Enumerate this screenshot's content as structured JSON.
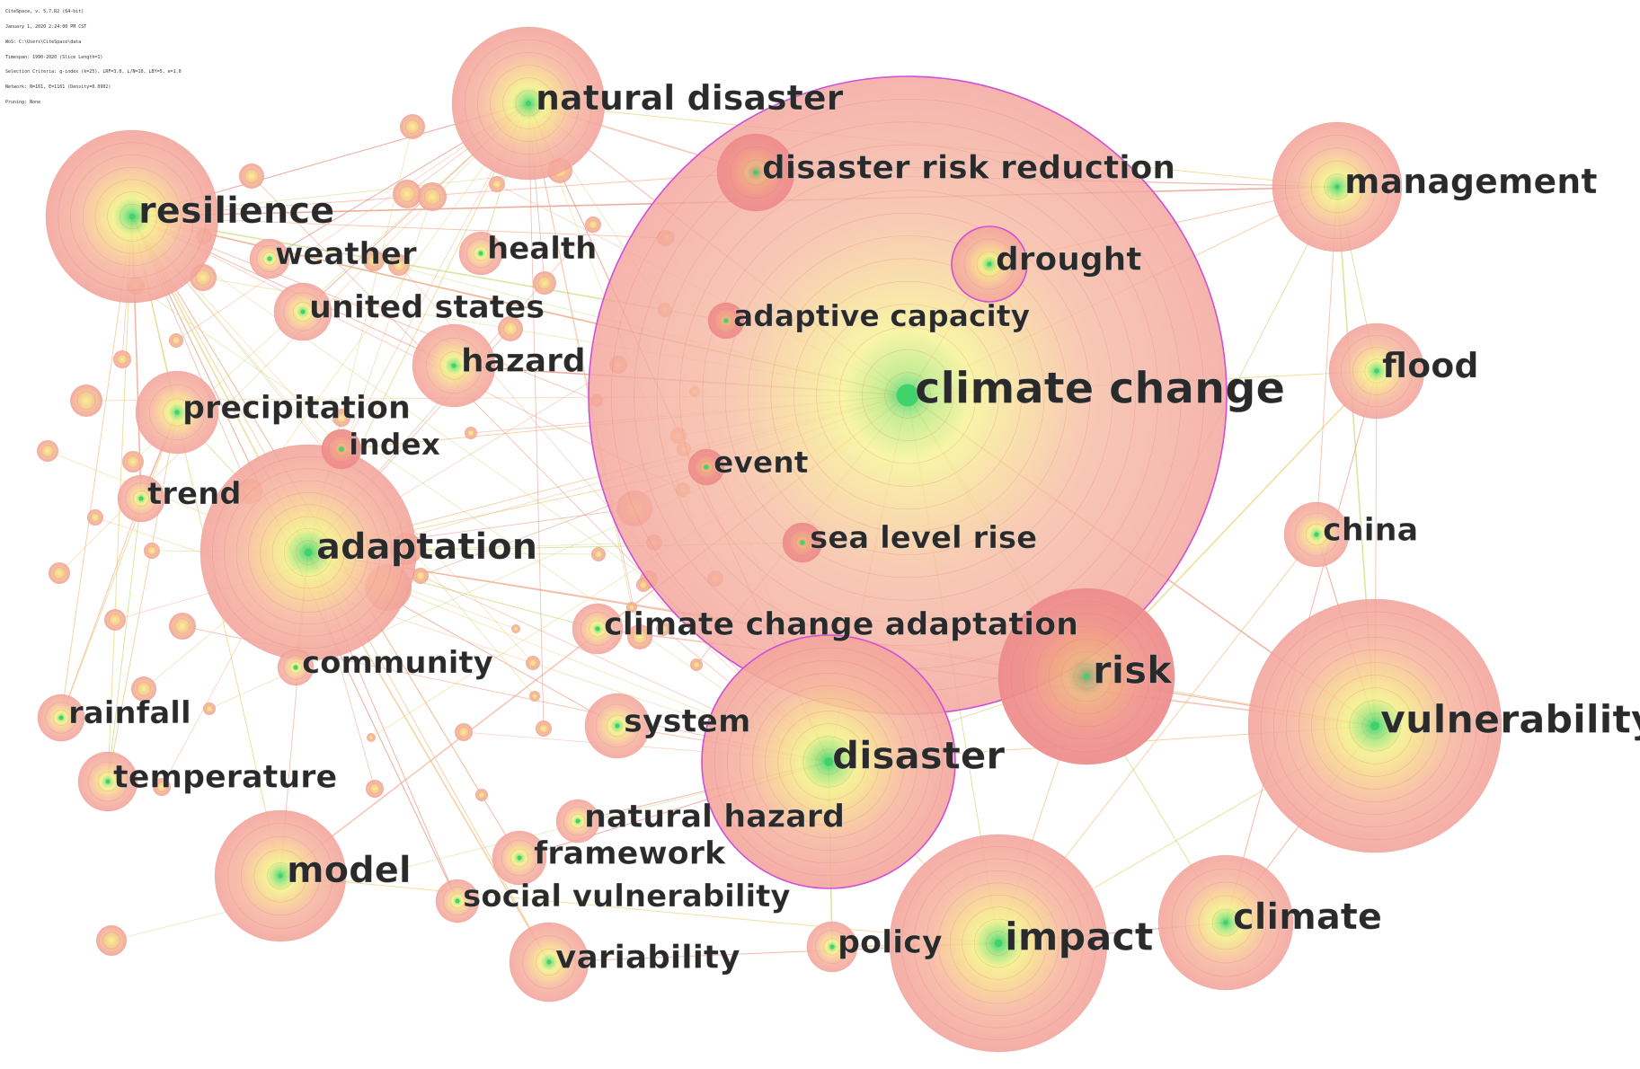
{
  "header_lines": [
    "CiteSpace, v. 5.7.R2 (64-bit)",
    "January 1, 2020 2:24:00 PM CST",
    "WoS: C:\\Users\\CiteSpace\\data",
    "Timespan: 1990-2020 (Slice Length=1)",
    "Selection Criteria: g-index (k=25), LRF=3.0, L/N=10, LBY=5, e=1.0",
    "Network: N=161, E=1161 (Density=0.0902)",
    "Pruning: None"
  ],
  "colors": {
    "halo": "#f4a6a0",
    "core": "#41d36b",
    "mid": "#f2f07a",
    "ring": "#e07a6c",
    "burst": "#e8707a",
    "big_border": "#d04fd8"
  },
  "keywords": [
    {
      "id": "climate-change",
      "label": "climate change",
      "freq": 100,
      "burst": false,
      "outline": true
    },
    {
      "id": "disaster",
      "label": "disaster",
      "freq": 30,
      "burst": false,
      "outline": true
    },
    {
      "id": "vulnerability",
      "label": "vulnerability",
      "freq": 34,
      "burst": false,
      "outline": false
    },
    {
      "id": "risk",
      "label": "risk",
      "freq": 17,
      "burst": true,
      "outline": false
    },
    {
      "id": "impact",
      "label": "impact",
      "freq": 26,
      "burst": false,
      "outline": false
    },
    {
      "id": "adaptation",
      "label": "adaptation",
      "freq": 20,
      "burst": false,
      "outline": false
    },
    {
      "id": "resilience",
      "label": "resilience",
      "freq": 16,
      "burst": false,
      "outline": false
    },
    {
      "id": "natural-disaster",
      "label": "natural disaster",
      "freq": 12,
      "burst": false,
      "outline": false
    },
    {
      "id": "climate",
      "label": "climate",
      "freq": 10,
      "burst": false,
      "outline": false
    },
    {
      "id": "management",
      "label": "management",
      "freq": 9,
      "burst": false,
      "outline": false
    },
    {
      "id": "model",
      "label": "model",
      "freq": 9,
      "burst": false,
      "outline": false
    },
    {
      "id": "flood",
      "label": "flood",
      "freq": 5,
      "burst": false,
      "outline": false
    },
    {
      "id": "disaster-risk-reduction",
      "label": "disaster risk reduction",
      "freq": 4,
      "burst": true,
      "outline": false
    },
    {
      "id": "drought",
      "label": "drought",
      "freq": 4,
      "burst": false,
      "outline": true
    },
    {
      "id": "hazard",
      "label": "hazard",
      "freq": 4,
      "burst": false,
      "outline": false
    },
    {
      "id": "precipitation",
      "label": "precipitation",
      "freq": 4,
      "burst": false,
      "outline": false
    },
    {
      "id": "system",
      "label": "system",
      "freq": 2,
      "burst": false,
      "outline": false
    },
    {
      "id": "variability",
      "label": "variability",
      "freq": 2,
      "burst": false,
      "outline": false
    },
    {
      "id": "temperature",
      "label": "temperature",
      "freq": 2,
      "burst": false,
      "outline": false
    },
    {
      "id": "china",
      "label": "china",
      "freq": 2,
      "burst": false,
      "outline": false
    },
    {
      "id": "united-states",
      "label": "united states",
      "freq": 2,
      "burst": false,
      "outline": false
    },
    {
      "id": "health",
      "label": "health",
      "freq": 1,
      "burst": false,
      "outline": false
    },
    {
      "id": "weather",
      "label": "weather",
      "freq": 1,
      "burst": false,
      "outline": false
    },
    {
      "id": "index",
      "label": "index",
      "freq": 1,
      "burst": true,
      "outline": false
    },
    {
      "id": "trend",
      "label": "trend",
      "freq": 1,
      "burst": false,
      "outline": false
    },
    {
      "id": "community",
      "label": "community",
      "freq": 1,
      "burst": false,
      "outline": false
    },
    {
      "id": "rainfall",
      "label": "rainfall",
      "freq": 1,
      "burst": false,
      "outline": false
    },
    {
      "id": "framework",
      "label": "framework",
      "freq": 1,
      "burst": false,
      "outline": false
    },
    {
      "id": "natural-hazard",
      "label": "natural hazard",
      "freq": 1,
      "burst": false,
      "outline": false
    },
    {
      "id": "social-vulnerability",
      "label": "social vulnerability",
      "freq": 1,
      "burst": false,
      "outline": false
    },
    {
      "id": "policy",
      "label": "policy",
      "freq": 1,
      "burst": false,
      "outline": false
    },
    {
      "id": "climate-change-adaptation",
      "label": "climate change adaptation",
      "freq": 1,
      "burst": false,
      "outline": false
    },
    {
      "id": "adaptive-capacity",
      "label": "adaptive capacity",
      "freq": 1,
      "burst": true,
      "outline": false
    },
    {
      "id": "event",
      "label": "event",
      "freq": 1,
      "burst": true,
      "outline": false
    },
    {
      "id": "sea-level-rise",
      "label": "sea level rise",
      "freq": 1,
      "burst": true,
      "outline": false
    }
  ],
  "links": [
    [
      "climate-change",
      "vulnerability"
    ],
    [
      "climate-change",
      "adaptation"
    ],
    [
      "climate-change",
      "risk"
    ],
    [
      "climate-change",
      "impact"
    ],
    [
      "climate-change",
      "disaster"
    ],
    [
      "climate-change",
      "resilience"
    ],
    [
      "climate-change",
      "natural-disaster"
    ],
    [
      "climate-change",
      "management"
    ],
    [
      "climate-change",
      "flood"
    ],
    [
      "climate-change",
      "climate"
    ],
    [
      "climate-change",
      "model"
    ],
    [
      "climate-change",
      "drought"
    ],
    [
      "vulnerability",
      "adaptation"
    ],
    [
      "vulnerability",
      "risk"
    ],
    [
      "vulnerability",
      "impact"
    ],
    [
      "vulnerability",
      "management"
    ],
    [
      "vulnerability",
      "flood"
    ],
    [
      "vulnerability",
      "china"
    ],
    [
      "vulnerability",
      "climate"
    ],
    [
      "vulnerability",
      "disaster"
    ],
    [
      "adaptation",
      "resilience"
    ],
    [
      "adaptation",
      "precipitation"
    ],
    [
      "adaptation",
      "model"
    ],
    [
      "adaptation",
      "community"
    ],
    [
      "adaptation",
      "social-vulnerability"
    ],
    [
      "adaptation",
      "variability"
    ],
    [
      "adaptation",
      "natural-disaster"
    ],
    [
      "adaptation",
      "sea-level-rise"
    ],
    [
      "adaptation",
      "vulnerability"
    ],
    [
      "resilience",
      "natural-disaster"
    ],
    [
      "resilience",
      "trend"
    ],
    [
      "resilience",
      "rainfall"
    ],
    [
      "resilience",
      "temperature"
    ],
    [
      "resilience",
      "precipitation"
    ],
    [
      "resilience",
      "disaster-risk-reduction"
    ],
    [
      "resilience",
      "management"
    ],
    [
      "resilience",
      "hazard"
    ],
    [
      "resilience",
      "climate-change"
    ],
    [
      "natural-disaster",
      "management"
    ],
    [
      "natural-disaster",
      "health"
    ],
    [
      "natural-disaster",
      "disaster-risk-reduction"
    ],
    [
      "natural-disaster",
      "disaster"
    ],
    [
      "natural-disaster",
      "united-states"
    ],
    [
      "disaster",
      "risk"
    ],
    [
      "disaster",
      "impact"
    ],
    [
      "disaster",
      "policy"
    ],
    [
      "disaster",
      "system"
    ],
    [
      "disaster",
      "framework"
    ],
    [
      "disaster",
      "natural-hazard"
    ],
    [
      "risk",
      "impact"
    ],
    [
      "risk",
      "flood"
    ],
    [
      "risk",
      "management"
    ],
    [
      "risk",
      "adaptation"
    ],
    [
      "impact",
      "climate"
    ],
    [
      "impact",
      "variability"
    ],
    [
      "impact",
      "policy"
    ],
    [
      "impact",
      "model"
    ],
    [
      "management",
      "flood"
    ],
    [
      "management",
      "china"
    ],
    [
      "management",
      "disaster-risk-reduction"
    ],
    [
      "precipitation",
      "trend"
    ],
    [
      "precipitation",
      "temperature"
    ],
    [
      "precipitation",
      "rainfall"
    ],
    [
      "trend",
      "temperature"
    ],
    [
      "trend",
      "rainfall"
    ],
    [
      "hazard",
      "climate-change"
    ],
    [
      "system",
      "adaptation"
    ],
    [
      "variability",
      "resilience"
    ],
    [
      "model",
      "resilience"
    ],
    [
      "climate-change-adaptation",
      "adaptation"
    ],
    [
      "climate-change-adaptation",
      "vulnerability"
    ],
    [
      "social-vulnerability",
      "resilience"
    ],
    [
      "framework",
      "resilience"
    ],
    [
      "index",
      "climate-change"
    ],
    [
      "event",
      "adaptation"
    ],
    [
      "adaptive-capacity",
      "resilience"
    ],
    [
      "drought",
      "management"
    ],
    [
      "weather",
      "natural-disaster"
    ],
    [
      "flood",
      "climate"
    ],
    [
      "china",
      "impact"
    ]
  ]
}
